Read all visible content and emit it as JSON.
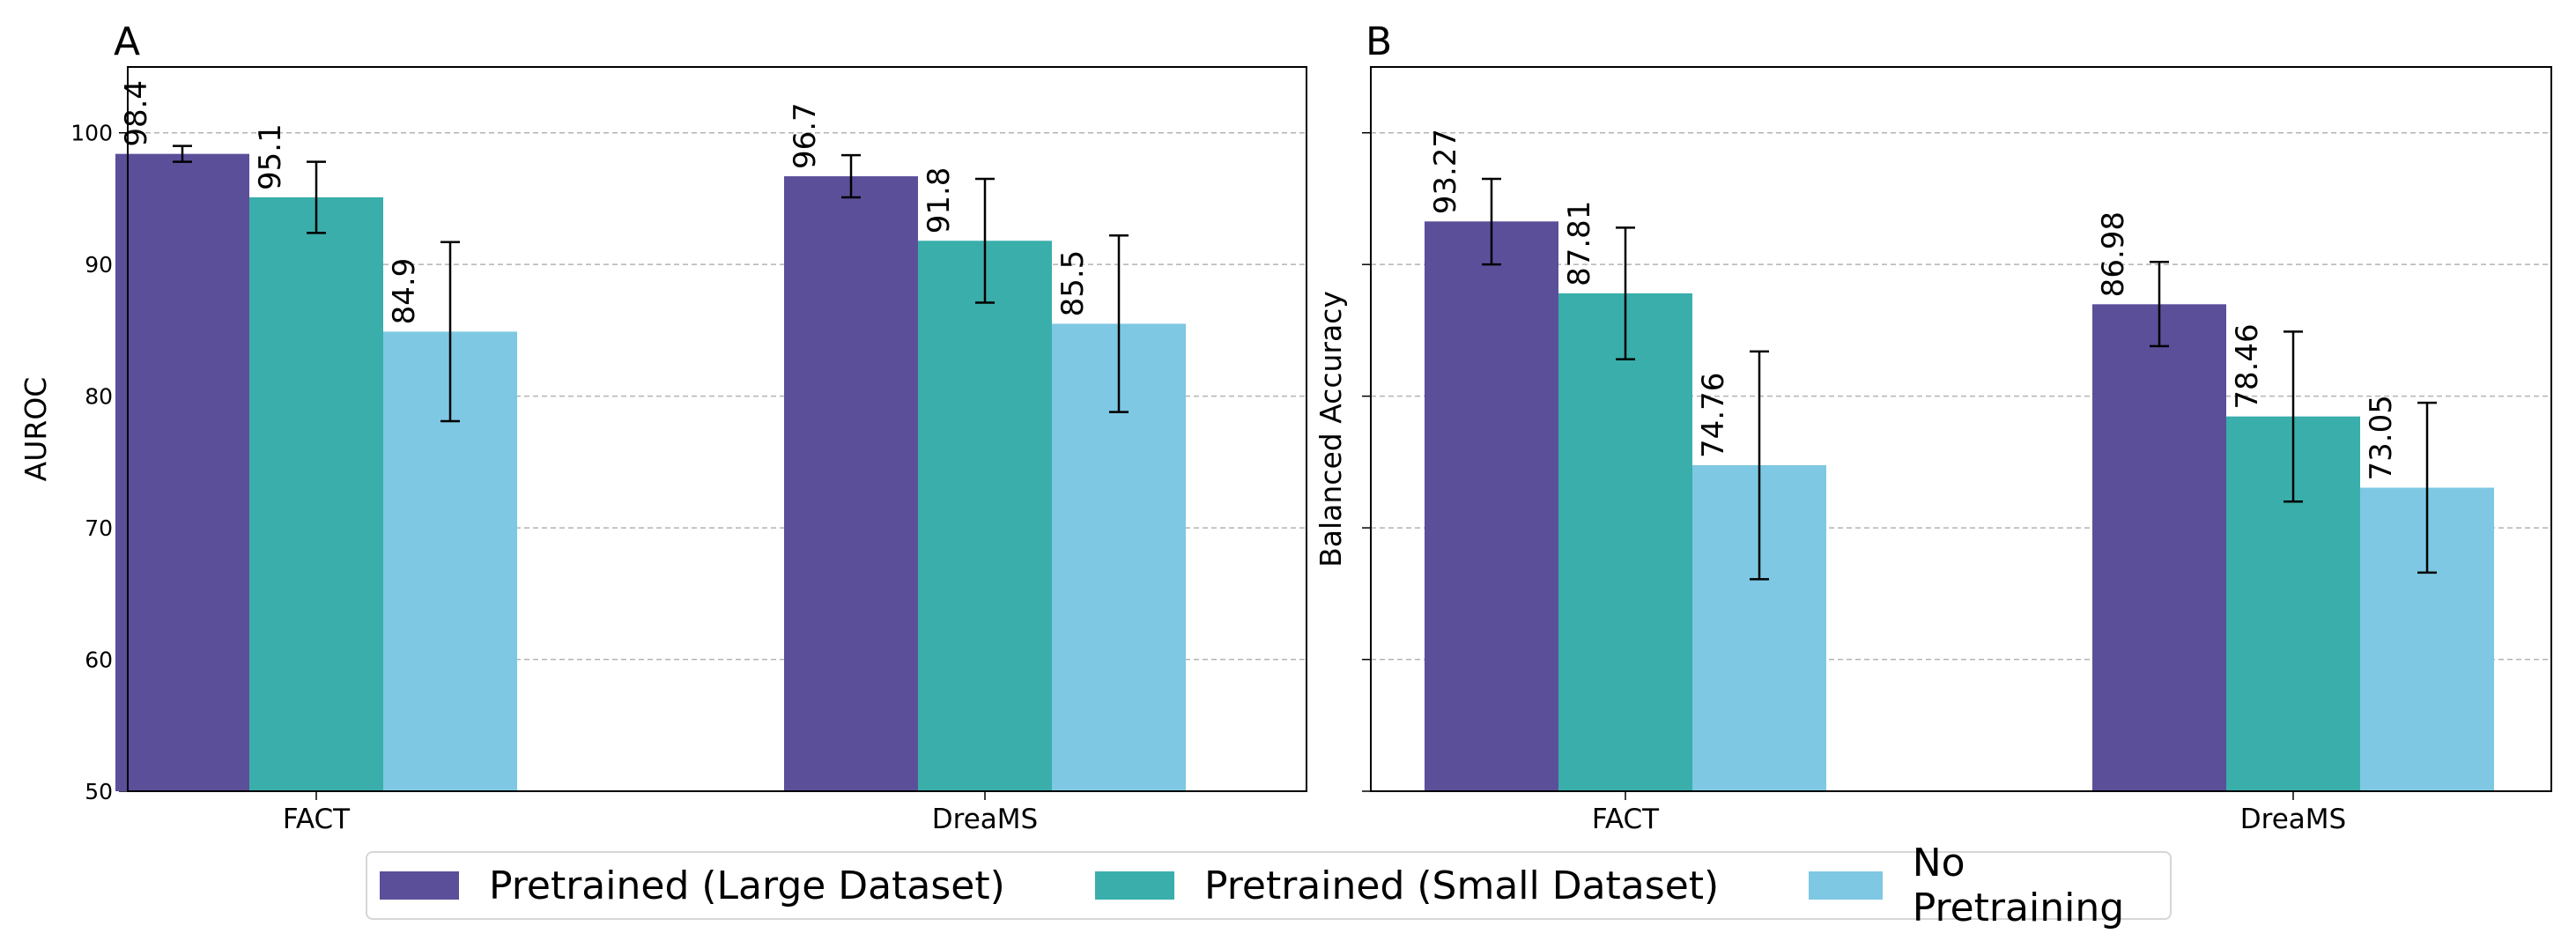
{
  "chart_data": [
    {
      "type": "bar",
      "panel_label": "A",
      "categories": [
        "FACT",
        "DreaMS"
      ],
      "ylabel": "AUROC",
      "xlabel": "",
      "ylim": [
        50,
        105
      ],
      "yticks": [
        "50",
        "60",
        "70",
        "80",
        "90",
        "100"
      ],
      "grid": "y-dashed",
      "series": [
        {
          "name": "Pretrained (Large Dataset)",
          "values": [
            98.4,
            96.7
          ],
          "labels": [
            "98.4",
            "96.7"
          ],
          "err_low": [
            97.8,
            95.1
          ],
          "err_high": [
            99.0,
            98.3
          ]
        },
        {
          "name": "Pretrained (Small Dataset)",
          "values": [
            95.1,
            91.8
          ],
          "labels": [
            "95.1",
            "91.8"
          ],
          "err_low": [
            92.4,
            87.1
          ],
          "err_high": [
            97.8,
            96.5
          ]
        },
        {
          "name": "No Pretraining",
          "values": [
            84.9,
            85.5
          ],
          "labels": [
            "84.9",
            "85.5"
          ],
          "err_low": [
            78.1,
            78.8
          ],
          "err_high": [
            91.7,
            92.2
          ]
        }
      ]
    },
    {
      "type": "bar",
      "panel_label": "B",
      "categories": [
        "FACT",
        "DreaMS"
      ],
      "ylabel": "Balanced Accuracy",
      "xlabel": "",
      "ylim": [
        50,
        105
      ],
      "yticks": [],
      "grid": "y-dashed",
      "series": [
        {
          "name": "Pretrained (Large Dataset)",
          "values": [
            93.27,
            86.98
          ],
          "labels": [
            "93.27",
            "86.98"
          ],
          "err_low": [
            90.0,
            83.8
          ],
          "err_high": [
            96.5,
            90.2
          ]
        },
        {
          "name": "Pretrained (Small Dataset)",
          "values": [
            87.81,
            78.46
          ],
          "labels": [
            "87.81",
            "78.46"
          ],
          "err_low": [
            82.8,
            72.0
          ],
          "err_high": [
            92.8,
            84.9
          ]
        },
        {
          "name": "No Pretraining",
          "values": [
            74.76,
            73.05
          ],
          "labels": [
            "74.76",
            "73.05"
          ],
          "err_low": [
            66.1,
            66.6
          ],
          "err_high": [
            83.4,
            79.5
          ]
        }
      ]
    }
  ],
  "legend": {
    "items": [
      {
        "label": "Pretrained (Large Dataset)",
        "color": "#5b4f9a"
      },
      {
        "label": "Pretrained (Small Dataset)",
        "color": "#3aaeab"
      },
      {
        "label": "No Pretraining",
        "color": "#7ec8e3"
      }
    ]
  }
}
